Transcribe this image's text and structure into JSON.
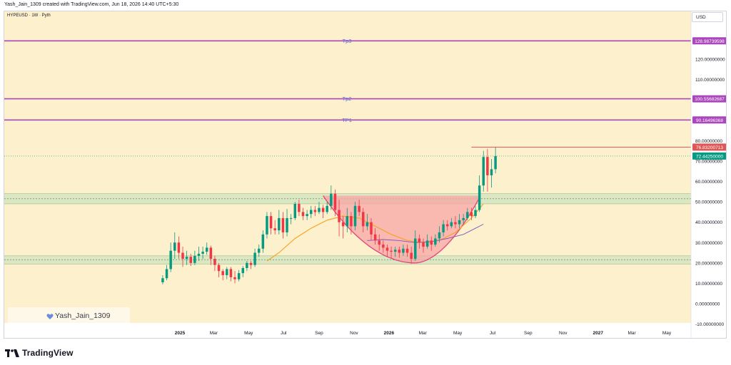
{
  "header": {
    "credit": "Yash_Jain_1309 created with TradingView.com, Jun 18, 2026 14:40 UTC+5:30",
    "symbol": "HYPEUSD · 1W · Pyth",
    "currency": "USD"
  },
  "watermark": {
    "text": "Yash_Jain_1309",
    "icon": "heart-icon"
  },
  "brand": {
    "name": "TradingView",
    "icon": "tradingview-logo-icon"
  },
  "colors": {
    "background": "#fdf0cd",
    "bull": "#089981",
    "bear": "#f23645",
    "target_line": "#ab47bc",
    "orange_ma": "#f7a21b",
    "purple_ma": "#7e57c2",
    "cup_fill": "#f7a5a5",
    "zone_fill": "#cfe3bf",
    "resistance": "#e05555"
  },
  "chart_data": {
    "type": "candlestick",
    "ylim": [
      -14,
      135
    ],
    "y_ticks": [
      "-10.00000000",
      "0.00000000",
      "10.00000000",
      "20.00000000",
      "30.00000000",
      "40.00000000",
      "50.00000000",
      "60.00000000",
      "70.00000000",
      "80.00000000",
      "110.00000000",
      "120.00000000"
    ],
    "x_ticks": [
      "2025",
      "Mar",
      "May",
      "Jul",
      "Sep",
      "Nov",
      "2026",
      "Mar",
      "May",
      "Jul",
      "Sep",
      "Nov",
      "2027",
      "Mar",
      "May"
    ],
    "x_ticks_bold": [
      "2025",
      "2026",
      "2027"
    ],
    "x_ticks_dates": [
      "2025-01",
      "2025-03",
      "2025-05",
      "2025-07",
      "2025-09",
      "2025-11",
      "2026-01",
      "2026-03",
      "2026-05",
      "2026-07",
      "2026-09",
      "2026-11",
      "2027-01",
      "2027-03",
      "2027-05"
    ],
    "target_lines": [
      {
        "label": "Tp3",
        "value": 128.98739598,
        "value_label": "128.98739598"
      },
      {
        "label": "Tp2",
        "value": 100.55682687,
        "value_label": "100.55682687"
      },
      {
        "label": "TP1",
        "value": 90.16496368,
        "value_label": "90.16496368"
      }
    ],
    "resistance": {
      "value": 76.83200713,
      "value_label": "76.83200713",
      "from": "2026-05-25"
    },
    "last_price": {
      "value": 72.4425,
      "value_label": "72.44250000"
    },
    "zones": [
      [
        49,
        54
      ],
      [
        19.5,
        23.5
      ]
    ],
    "dashed_levels": [
      51.5,
      21.5
    ],
    "candles_start": "2024-12-02",
    "candles": [
      [
        10.5,
        12.5,
        9.5,
        14
      ],
      [
        12.5,
        17,
        11.5,
        19
      ],
      [
        17,
        26,
        15.5,
        30
      ],
      [
        26,
        30,
        22,
        35
      ],
      [
        30,
        25,
        22,
        33
      ],
      [
        25,
        22,
        18,
        28
      ],
      [
        22,
        23,
        19,
        26
      ],
      [
        23,
        20,
        18.5,
        24.5
      ],
      [
        20,
        23.5,
        19,
        26
      ],
      [
        23.5,
        24.5,
        21,
        28
      ],
      [
        24.5,
        25.5,
        22,
        28
      ],
      [
        25.5,
        27.5,
        24,
        30
      ],
      [
        27.5,
        22,
        19,
        28.5
      ],
      [
        22,
        19,
        16,
        23.5
      ],
      [
        19,
        16,
        13,
        20
      ],
      [
        16,
        14,
        11.5,
        17
      ],
      [
        14,
        17,
        12,
        18
      ],
      [
        17,
        13,
        11,
        18
      ],
      [
        13,
        12,
        10,
        16
      ],
      [
        12,
        15,
        11,
        16.5
      ],
      [
        15,
        17.5,
        13,
        18.5
      ],
      [
        17.5,
        20,
        16,
        21
      ],
      [
        20,
        19,
        17,
        21
      ],
      [
        19,
        25,
        18,
        27
      ],
      [
        25,
        27,
        23,
        29
      ],
      [
        27,
        34,
        25,
        36
      ],
      [
        34,
        43,
        32,
        45
      ],
      [
        43,
        37,
        34,
        45
      ],
      [
        37,
        36,
        34,
        41
      ],
      [
        36,
        42,
        34,
        46
      ],
      [
        42,
        35,
        32,
        45
      ],
      [
        35,
        42,
        33,
        46.5
      ],
      [
        42,
        42,
        39,
        44
      ],
      [
        42,
        49,
        41,
        50
      ],
      [
        49,
        45,
        43,
        51
      ],
      [
        45,
        43,
        41,
        47
      ],
      [
        43,
        44,
        41,
        46
      ],
      [
        44,
        46,
        42,
        48
      ],
      [
        46,
        45,
        43,
        48
      ],
      [
        45,
        47,
        44,
        50
      ],
      [
        47,
        45,
        42,
        48.5
      ],
      [
        45,
        48,
        44,
        50
      ],
      [
        48,
        54,
        46,
        58
      ],
      [
        54,
        46,
        43,
        56
      ],
      [
        46,
        40,
        33,
        51
      ],
      [
        40,
        38,
        32,
        43
      ],
      [
        38,
        43,
        35,
        47
      ],
      [
        43,
        38,
        34,
        45
      ],
      [
        38,
        48,
        36,
        50
      ],
      [
        48,
        45,
        43,
        51
      ],
      [
        45,
        38,
        35,
        47
      ],
      [
        38,
        40,
        36,
        44
      ],
      [
        40,
        34,
        31,
        42
      ],
      [
        34,
        31,
        29,
        37
      ],
      [
        31,
        29,
        26,
        34
      ],
      [
        29,
        27.5,
        25,
        31
      ],
      [
        27.5,
        26,
        23,
        29
      ],
      [
        26,
        25.5,
        22,
        28
      ],
      [
        25.5,
        26.5,
        23,
        28
      ],
      [
        26.5,
        25,
        22.5,
        28
      ],
      [
        25,
        27,
        23.5,
        29
      ],
      [
        27,
        25,
        23,
        29
      ],
      [
        25,
        22,
        19.5,
        28
      ],
      [
        22,
        32,
        21,
        36
      ],
      [
        32,
        30,
        27,
        34
      ],
      [
        30,
        28,
        25,
        32
      ],
      [
        28,
        31,
        27,
        34
      ],
      [
        31,
        29,
        26,
        33
      ],
      [
        29,
        32,
        28,
        34
      ],
      [
        32,
        35,
        30,
        38
      ],
      [
        35,
        39,
        33,
        41
      ],
      [
        39,
        38,
        36,
        41
      ],
      [
        38,
        40,
        37,
        42
      ],
      [
        40,
        39,
        37,
        43
      ],
      [
        39,
        41,
        37,
        44
      ],
      [
        41,
        42,
        39,
        44
      ],
      [
        42,
        45,
        41,
        47
      ],
      [
        45,
        43,
        41,
        47
      ],
      [
        43,
        46,
        42,
        48
      ],
      [
        46,
        58,
        45,
        63
      ],
      [
        58,
        72,
        55,
        75
      ],
      [
        72,
        63,
        55,
        76
      ],
      [
        63,
        66,
        57,
        71
      ],
      [
        66,
        72.44,
        64,
        77
      ]
    ],
    "orange_ma": [
      [
        "2025-06-02",
        21
      ],
      [
        "2025-06-23",
        25
      ],
      [
        "2025-07-21",
        32
      ],
      [
        "2025-08-18",
        37
      ],
      [
        "2025-09-15",
        41
      ],
      [
        "2025-10-13",
        43
      ],
      [
        "2025-11-10",
        42
      ],
      [
        "2025-12-08",
        38
      ],
      [
        "2026-01-05",
        34
      ],
      [
        "2026-02-02",
        31
      ],
      [
        "2026-03-02",
        30
      ],
      [
        "2026-03-30",
        31
      ],
      [
        "2026-04-27",
        35
      ],
      [
        "2026-05-25",
        42
      ],
      [
        "2026-06-15",
        49
      ]
    ],
    "purple_ma": [
      [
        "2025-11-24",
        31
      ],
      [
        "2025-12-22",
        31.5
      ],
      [
        "2026-01-19",
        31
      ],
      [
        "2026-02-16",
        30
      ],
      [
        "2026-03-16",
        30.5
      ],
      [
        "2026-04-13",
        32
      ],
      [
        "2026-05-11",
        34
      ],
      [
        "2026-06-01",
        37
      ],
      [
        "2026-06-15",
        39
      ]
    ],
    "cup": {
      "start": "2025-09-08",
      "start_value": 53,
      "bottom": "2026-02-16",
      "bottom_value": 20,
      "end": "2026-06-08",
      "end_value": 52
    }
  }
}
